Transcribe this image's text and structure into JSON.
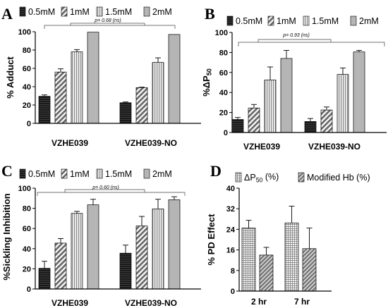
{
  "figure": {
    "panels": [
      {
        "id": "A",
        "label": "A"
      },
      {
        "id": "B",
        "label": "B"
      },
      {
        "id": "C",
        "label": "C"
      },
      {
        "id": "D",
        "label": "D"
      }
    ]
  },
  "colors": {
    "0.5mM": "#1a1a1a",
    "1mM": "#8c8c8c",
    "1.5mM": "#d7d7d7",
    "2mM": "#b5b5b5",
    "deltaP50": "#cfcfcf",
    "modifiedHb": "#8a8a8a"
  },
  "chart_data": [
    {
      "panel": "A",
      "type": "bar",
      "ylabel": "% Adduct",
      "ylim": [
        0,
        100
      ],
      "yticks": [
        0,
        20,
        40,
        60,
        80,
        100
      ],
      "categories": [
        "VZHE039",
        "VZHE039-NO"
      ],
      "legend": [
        "0.5mM",
        "1mM",
        "1.5mM",
        "2mM"
      ],
      "series": [
        {
          "name": "0.5mM",
          "values": [
            29.5,
            22.5
          ],
          "errors": [
            1.5,
            0.8
          ]
        },
        {
          "name": "1mM",
          "values": [
            56,
            39
          ],
          "errors": [
            3.5,
            0.5
          ]
        },
        {
          "name": "1.5mM",
          "values": [
            78,
            66.5
          ],
          "errors": [
            2.5,
            5
          ]
        },
        {
          "name": "2mM",
          "values": [
            99.5,
            97
          ],
          "errors": [
            0,
            0
          ]
        }
      ],
      "annotation": "p= 0.68 (ns)"
    },
    {
      "panel": "B",
      "type": "bar",
      "ylabel": "%ΔP50",
      "ylim": [
        0,
        100
      ],
      "yticks": [
        0,
        20,
        40,
        60,
        80,
        100
      ],
      "categories": [
        "VZHE039",
        "VZHE039-NO"
      ],
      "legend": [
        "0.5mM",
        "1mM",
        "1.5mM",
        "2mM"
      ],
      "series": [
        {
          "name": "0.5mM",
          "values": [
            13,
            11
          ],
          "errors": [
            2,
            3
          ]
        },
        {
          "name": "1mM",
          "values": [
            24.5,
            22.5
          ],
          "errors": [
            3.5,
            3
          ]
        },
        {
          "name": "1.5mM",
          "values": [
            52.5,
            58
          ],
          "errors": [
            13,
            6.5
          ]
        },
        {
          "name": "2mM",
          "values": [
            74,
            80.5
          ],
          "errors": [
            8,
            1.5
          ]
        }
      ],
      "annotation": "p= 0.93 (ns)"
    },
    {
      "panel": "C",
      "type": "bar",
      "ylabel": "%Sickling Inhibition",
      "ylim": [
        0,
        100
      ],
      "yticks": [
        0,
        20,
        40,
        60,
        80,
        100
      ],
      "categories": [
        "VZHE039",
        "VZHE039-NO"
      ],
      "legend": [
        "0.5mM",
        "1mM",
        "1.5mM",
        "2mM"
      ],
      "series": [
        {
          "name": "0.5mM",
          "values": [
            20.5,
            35.5
          ],
          "errors": [
            7,
            8
          ]
        },
        {
          "name": "1mM",
          "values": [
            45.5,
            62.5
          ],
          "errors": [
            4.5,
            9.5
          ]
        },
        {
          "name": "1.5mM",
          "values": [
            75,
            79.5
          ],
          "errors": [
            2,
            9.5
          ]
        },
        {
          "name": "2mM",
          "values": [
            83.5,
            88.5
          ],
          "errors": [
            5.5,
            3
          ]
        }
      ],
      "annotation": "p= 0.60 (ns)"
    },
    {
      "panel": "D",
      "type": "bar",
      "ylabel": "% PD Effect",
      "ylim": [
        0,
        40
      ],
      "yticks": [
        0,
        8,
        16,
        24,
        32,
        40
      ],
      "categories": [
        "2 hr",
        "7 hr"
      ],
      "legend": [
        "ΔP50 (%)",
        "Modified Hb (%)"
      ],
      "series": [
        {
          "name": "ΔP50 (%)",
          "values": [
            24.5,
            26.5
          ],
          "errors": [
            3,
            6.5
          ]
        },
        {
          "name": "Modified Hb (%)",
          "values": [
            14,
            16.5
          ],
          "errors": [
            3,
            8
          ]
        }
      ]
    }
  ]
}
